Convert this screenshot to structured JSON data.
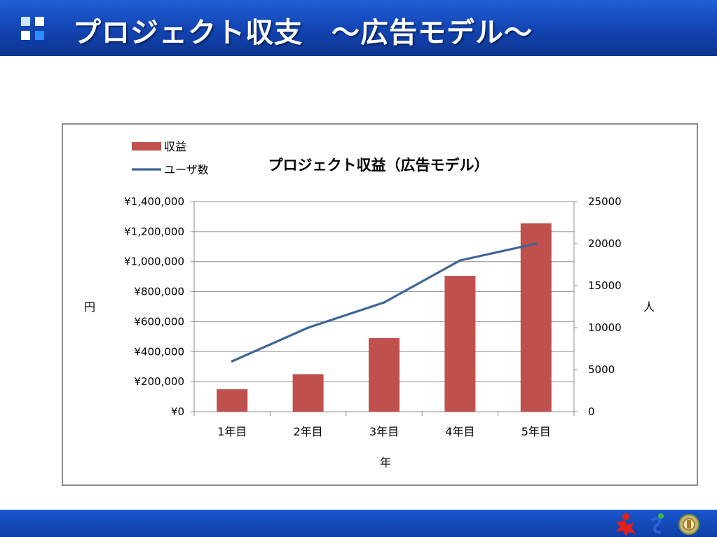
{
  "header": {
    "title": "プロジェクト収支　～広告モデル～",
    "colors": {
      "bar_top": "#1f5fd6",
      "bar_bottom": "#0d3590"
    }
  },
  "chart_data": {
    "type": "bar",
    "title": "プロジェクト収益（広告モデル）",
    "xlabel": "年",
    "ylabel": "円",
    "y2label": "人",
    "categories": [
      "1年目",
      "2年目",
      "3年目",
      "4年目",
      "5年目"
    ],
    "ylim": [
      0,
      1400000
    ],
    "y2lim": [
      0,
      25000
    ],
    "yticks": [
      0,
      200000,
      400000,
      600000,
      800000,
      1000000,
      1200000,
      1400000
    ],
    "ytick_labels": [
      "¥0",
      "¥200,000",
      "¥400,000",
      "¥600,000",
      "¥800,000",
      "¥1,000,000",
      "¥1,200,000",
      "¥1,400,000"
    ],
    "y2ticks": [
      0,
      5000,
      10000,
      15000,
      20000,
      25000
    ],
    "y2tick_labels": [
      "0",
      "5000",
      "10000",
      "15000",
      "20000",
      "25000"
    ],
    "grid": true,
    "legend_position": "top-left",
    "series": [
      {
        "name": "収益",
        "type": "bar",
        "axis": "left",
        "color": "#c0504d",
        "values": [
          150000,
          250000,
          490000,
          905000,
          1255000
        ]
      },
      {
        "name": "ユーザ数",
        "type": "line",
        "axis": "right",
        "color": "#3d6596",
        "values": [
          6000,
          10000,
          13000,
          18000,
          20000
        ]
      }
    ]
  },
  "footer": {
    "logos": [
      "red-figure-logo",
      "swirl-logo",
      "emblem-logo"
    ]
  }
}
